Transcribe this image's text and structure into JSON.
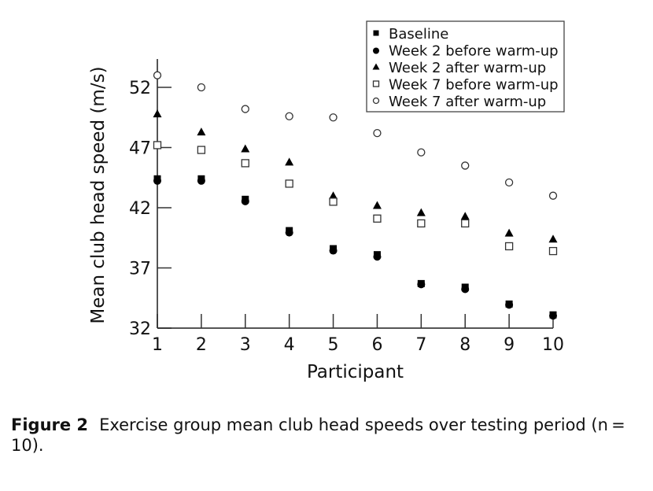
{
  "chart_data": {
    "type": "scatter",
    "title": "",
    "xlabel": "Participant",
    "ylabel": "Mean club head speed (m/s)",
    "xlim": [
      1,
      10
    ],
    "ylim": [
      32,
      52
    ],
    "x_ticks": [
      "1",
      "2",
      "3",
      "4",
      "5",
      "6",
      "7",
      "8",
      "9",
      "10"
    ],
    "y_ticks": [
      "32",
      "37",
      "42",
      "47",
      "52"
    ],
    "legend_position": "top-right",
    "x": [
      1,
      2,
      3,
      4,
      5,
      6,
      7,
      8,
      9,
      10
    ],
    "series": [
      {
        "name": "Baseline",
        "marker": "filled-square",
        "values": [
          44.4,
          44.4,
          42.7,
          40.1,
          38.6,
          38.1,
          35.7,
          35.4,
          34.0,
          33.1
        ]
      },
      {
        "name": "Week 2 before warm-up",
        "marker": "filled-circle",
        "values": [
          44.3,
          44.3,
          42.6,
          40.0,
          38.5,
          38.0,
          35.7,
          35.3,
          34.0,
          33.1
        ]
      },
      {
        "name": "Week 2 after warm-up",
        "marker": "filled-triangle",
        "values": [
          49.8,
          48.3,
          46.9,
          45.8,
          43.0,
          42.2,
          41.6,
          41.3,
          39.9,
          39.4
        ]
      },
      {
        "name": "Week 7 before warm-up",
        "marker": "open-square",
        "values": [
          47.2,
          46.8,
          45.7,
          44.0,
          42.5,
          41.1,
          40.7,
          40.7,
          38.8,
          38.4
        ]
      },
      {
        "name": "Week 7 after warm-up",
        "marker": "open-circle",
        "values": [
          53.0,
          52.0,
          50.2,
          49.6,
          49.5,
          48.2,
          46.6,
          45.5,
          44.1,
          43.0
        ]
      }
    ]
  },
  "caption": {
    "label": "Figure 2",
    "text": "Exercise group mean club head speeds over testing period (n = 10)."
  }
}
